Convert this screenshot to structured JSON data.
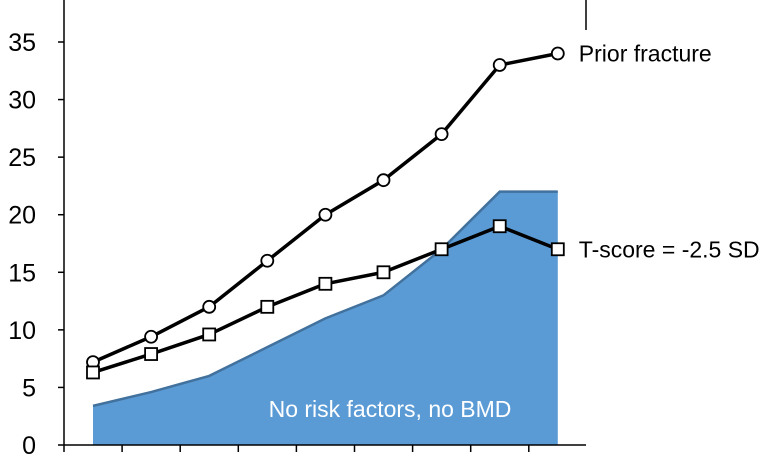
{
  "chart_data": {
    "type": "line",
    "title": "",
    "xlabel": "",
    "ylabel": "",
    "ylim": [
      0,
      38
    ],
    "yticks": [
      0,
      5,
      10,
      15,
      20,
      25,
      30,
      35
    ],
    "x_points": 9,
    "grid": false,
    "legend": "none (series labelled inline at line ends)",
    "series": [
      {
        "name": "Prior fracture",
        "kind": "line",
        "marker": "circle",
        "color": "#000000",
        "values": [
          7.2,
          9.4,
          12,
          16,
          20,
          23,
          27,
          33,
          34
        ]
      },
      {
        "name": "T-score = -2.5 SD",
        "kind": "line",
        "marker": "square",
        "color": "#000000",
        "values": [
          6.3,
          7.9,
          9.6,
          12,
          14,
          15,
          17,
          19,
          17
        ]
      },
      {
        "name": "No risk factors, no BMD",
        "kind": "area",
        "color": "#5b9bd5",
        "edge_color": "#41719c",
        "values": [
          3.4,
          4.6,
          6,
          8.5,
          11,
          13,
          17,
          22,
          22
        ]
      }
    ]
  }
}
